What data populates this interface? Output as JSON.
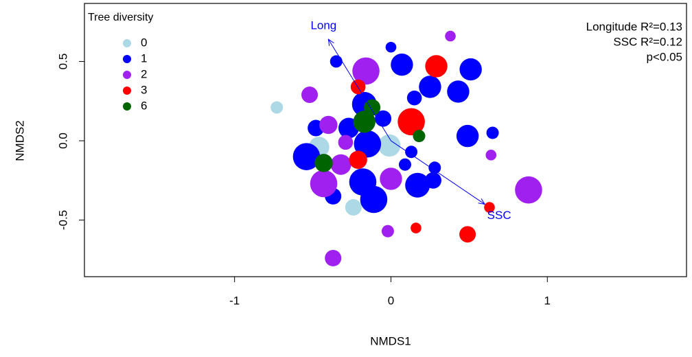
{
  "chart_data": {
    "type": "scatter",
    "xlabel": "NMDS1",
    "ylabel": "NMDS2",
    "xlim": [
      -1.96,
      1.89
    ],
    "ylim": [
      -0.857,
      0.866
    ],
    "xticks": [
      -1,
      0,
      1
    ],
    "yticks": [
      -0.5,
      {
        "value": 0,
        "label": "0.0"
      },
      0.5
    ],
    "legend_title": "Tree diversity",
    "legend": "top-left",
    "series": [
      {
        "name": "0",
        "color": "#add8e6",
        "x": [
          -0.73,
          -0.24,
          -0.01,
          -0.46
        ],
        "y": [
          0.21,
          -0.42,
          -0.03,
          -0.04
        ],
        "sizes": [
          1.5,
          2,
          2.7,
          2.5
        ]
      },
      {
        "name": "1",
        "color": "#0000ff",
        "x": [
          0.0,
          -0.35,
          0.07,
          -0.16,
          0.51,
          0.43,
          0.25,
          0.15,
          -0.17,
          -0.05,
          0.65,
          0.49,
          -0.48,
          -0.27,
          -0.15,
          0.13,
          -0.54,
          0.09,
          0.28,
          -0.18,
          0.17,
          0.27,
          -0.11,
          -0.37
        ],
        "y": [
          0.59,
          0.5,
          0.48,
          0.44,
          0.45,
          0.31,
          0.34,
          0.27,
          0.23,
          0.14,
          0.05,
          0.03,
          0.08,
          0.08,
          -0.02,
          -0.07,
          -0.1,
          -0.15,
          -0.17,
          -0.26,
          -0.28,
          -0.25,
          -0.37,
          -0.35
        ],
        "sizes": [
          1.3,
          1.5,
          2.7,
          2,
          2.7,
          2.7,
          2.7,
          1.8,
          3,
          2,
          1.5,
          2.7,
          2,
          2.5,
          3.3,
          1.5,
          3.3,
          1.5,
          1.5,
          3.3,
          3,
          2,
          3.3,
          2
        ]
      },
      {
        "name": "2",
        "color": "#a020f0",
        "x": [
          0.38,
          -0.16,
          -0.52,
          -0.4,
          -0.29,
          -0.32,
          -0.43,
          0.0,
          0.88,
          0.64,
          -0.02,
          -0.37
        ],
        "y": [
          0.66,
          0.44,
          0.29,
          0.1,
          -0.01,
          -0.15,
          -0.27,
          -0.24,
          -0.31,
          -0.09,
          -0.57,
          -0.74
        ],
        "sizes": [
          1.3,
          3.3,
          2,
          2.2,
          1.8,
          2.5,
          3.3,
          2.7,
          3.3,
          1.3,
          1.5,
          2
        ]
      },
      {
        "name": "3",
        "color": "#ff0000",
        "x": [
          0.29,
          -0.21,
          0.13,
          -0.21,
          0.63,
          0.16,
          0.49
        ],
        "y": [
          0.47,
          0.34,
          0.12,
          -0.12,
          -0.42,
          -0.55,
          -0.59
        ],
        "sizes": [
          2.7,
          1.8,
          3.3,
          2.2,
          1.3,
          1.3,
          2
        ]
      },
      {
        "name": "6",
        "color": "#006400",
        "x": [
          -0.12,
          -0.17,
          0.18,
          -0.43
        ],
        "y": [
          0.21,
          0.12,
          0.03,
          -0.14
        ],
        "sizes": [
          2,
          2.7,
          1.5,
          2.2
        ]
      }
    ],
    "vectors": [
      {
        "name": "Long",
        "x": -0.4,
        "y": 0.64,
        "color": "#0000ff"
      },
      {
        "name": "SSC",
        "x": 0.6,
        "y": -0.4,
        "color": "#0000ff"
      }
    ],
    "annotations": [
      "Longitude R²=0.13",
      "SSC R²=0.12",
      "p<0.05"
    ]
  }
}
